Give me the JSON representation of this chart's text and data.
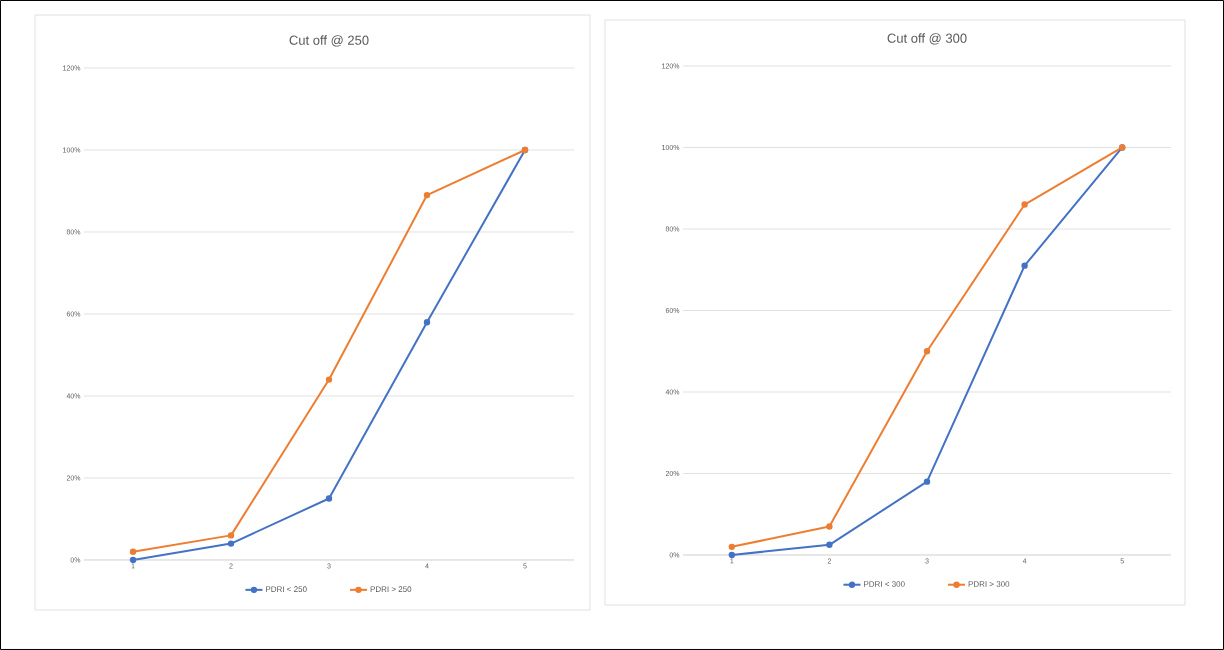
{
  "chart_data": [
    {
      "type": "line",
      "title": "Cut off @ 250",
      "categories": [
        "1",
        "2",
        "3",
        "4",
        "5"
      ],
      "series": [
        {
          "name": "PDRI < 250",
          "color": "#4472c4",
          "values": [
            0,
            4,
            15,
            58,
            100
          ]
        },
        {
          "name": "PDRI > 250",
          "color": "#ed7d31",
          "values": [
            2,
            6,
            44,
            89,
            100
          ]
        }
      ],
      "ylim": [
        0,
        120
      ],
      "yticks": [
        {
          "value": 0,
          "label": "0%"
        },
        {
          "value": 20,
          "label": "20%"
        },
        {
          "value": 40,
          "label": "40%"
        },
        {
          "value": 60,
          "label": "60%"
        },
        {
          "value": 80,
          "label": "80%"
        },
        {
          "value": 100,
          "label": "100%"
        },
        {
          "value": 120,
          "label": "120%"
        }
      ],
      "grid": "y",
      "legend": "bottom",
      "marker": "circle",
      "line_style": "solid"
    },
    {
      "type": "line",
      "title": "Cut off @ 300",
      "categories": [
        "1",
        "2",
        "3",
        "4",
        "5"
      ],
      "series": [
        {
          "name": "PDRI < 300",
          "color": "#4472c4",
          "values": [
            0,
            2.5,
            18,
            71,
            100
          ]
        },
        {
          "name": "PDRI > 300",
          "color": "#ed7d31",
          "values": [
            2,
            7,
            50,
            86,
            100
          ]
        }
      ],
      "ylim": [
        0,
        120
      ],
      "yticks": [
        {
          "value": 0,
          "label": "0%"
        },
        {
          "value": 20,
          "label": "20%"
        },
        {
          "value": 40,
          "label": "40%"
        },
        {
          "value": 60,
          "label": "60%"
        },
        {
          "value": 80,
          "label": "80%"
        },
        {
          "value": 100,
          "label": "100%"
        },
        {
          "value": 120,
          "label": "120%"
        }
      ],
      "grid": "y",
      "legend": "bottom",
      "marker": "circle",
      "line_style": "solid"
    }
  ]
}
